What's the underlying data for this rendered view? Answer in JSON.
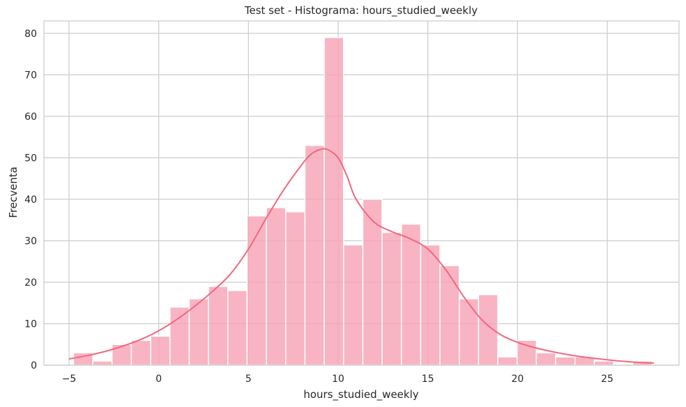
{
  "chart_data": {
    "type": "bar",
    "title": "Test set - Histograma: hours_studied_weekly",
    "xlabel": "hours_studied_weekly",
    "ylabel": "Frecventa",
    "xlim": [
      -6.4,
      29.0
    ],
    "ylim": [
      0,
      83
    ],
    "xticks": [
      -5,
      0,
      5,
      10,
      15,
      20,
      25
    ],
    "yticks": [
      0,
      10,
      20,
      30,
      40,
      50,
      60,
      70,
      80
    ],
    "grid": true,
    "bin_start": -4.75,
    "bin_width": 1.075,
    "values": [
      3,
      1,
      5,
      6,
      7,
      14,
      16,
      19,
      18,
      36,
      38,
      37,
      53,
      79,
      29,
      40,
      32,
      34,
      29,
      24,
      16,
      17,
      2,
      6,
      3,
      2,
      2,
      1,
      0,
      1
    ],
    "kde": {
      "x": [
        -5,
        -4,
        -3,
        -2,
        -1,
        0,
        1,
        2,
        3,
        4,
        5,
        6,
        7,
        8,
        8.5,
        9,
        9.4,
        10,
        10.5,
        11,
        12,
        13,
        14,
        15,
        16,
        17,
        18,
        19,
        20,
        21,
        22,
        23,
        24,
        25,
        26,
        27,
        27.6
      ],
      "y": [
        1.5,
        2.3,
        3.3,
        4.6,
        6.2,
        8.3,
        11,
        14.2,
        17.8,
        22,
        28,
        35.5,
        42.5,
        48.5,
        50.9,
        52,
        52,
        50,
        45.5,
        40,
        34.5,
        32.2,
        30.5,
        28,
        23,
        16.5,
        11,
        7.5,
        5.5,
        4.2,
        3.2,
        2.4,
        1.8,
        1.3,
        0.9,
        0.6,
        0.5
      ]
    },
    "colors": {
      "bar_fill": "#f7a1b4",
      "bar_edge": "#ffffff",
      "line": "#f0687f",
      "grid": "#cccccc",
      "spine": "#cccccc",
      "text": "#262626"
    }
  }
}
